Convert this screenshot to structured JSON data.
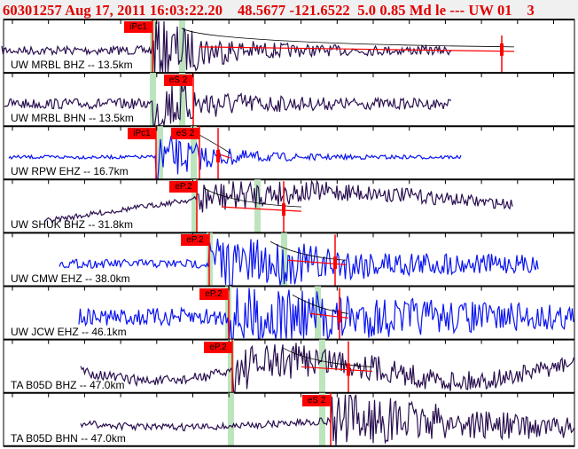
{
  "header": {
    "title": "60301257 Aug 17, 2011 16:03:22.20    48.5677 -121.6522  5.0 0.85 Md le --- UW 01    3"
  },
  "colors": {
    "title": "#e00000",
    "pick": "#ff0000",
    "window": "#bde5bd",
    "trace_broadband": "#2a1050",
    "trace_short_period": "#0a14f0"
  },
  "panels": [
    {
      "station": "UW MRBL BHZ -- 13.5km",
      "picks": [
        "iPc1"
      ],
      "trace": "trace_broadband"
    },
    {
      "station": "UW MRBL BHN -- 13.5km",
      "picks": [
        "eS 2"
      ],
      "trace": "trace_broadband"
    },
    {
      "station": "UW RPW EHZ -- 16.7km",
      "picks": [
        "iPc1",
        "eS 2"
      ],
      "trace": "trace_short_period"
    },
    {
      "station": "UW SHUK BHZ -- 31.8km",
      "picks": [
        "eP.2"
      ],
      "trace": "trace_broadband"
    },
    {
      "station": "UW CMW EHZ -- 38.0km",
      "picks": [
        "eP.2"
      ],
      "trace": "trace_short_period"
    },
    {
      "station": "UW JCW EHZ -- 46.1km",
      "picks": [
        "eP.2"
      ],
      "trace": "trace_short_period"
    },
    {
      "station": "TA B05D BHZ -- 47.0km",
      "picks": [
        "eP.2"
      ],
      "trace": "trace_broadband"
    },
    {
      "station": "TA B05D BHN -- 47.0km",
      "picks": [
        "eS 2"
      ],
      "trace": "trace_broadband"
    }
  ]
}
